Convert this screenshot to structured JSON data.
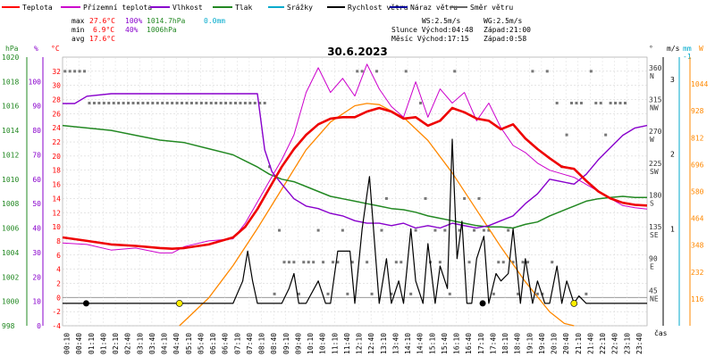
{
  "chart_data": {
    "type": "line",
    "title": "30.6.2023",
    "xlabel": "čas",
    "legend": [
      {
        "name": "Teplota",
        "color": "#ff0000"
      },
      {
        "name": "Přízemní teplota",
        "color": "#cc00cc"
      },
      {
        "name": "Vlhkost",
        "color": "#8800cc"
      },
      {
        "name": "Tlak",
        "color": "#228822"
      },
      {
        "name": "Srážky",
        "color": "#00aacc"
      },
      {
        "name": "Rychlost větru",
        "color": "#000000"
      },
      {
        "name": "Náraz větru",
        "color": "#000099"
      },
      {
        "name": "Směr větru",
        "color": "#666666"
      }
    ],
    "stats": {
      "max_label": "max",
      "max_temp": "27.6°C",
      "max_hum": "100%",
      "max_press": "1014.7hPa",
      "max_rain": "0.0mm",
      "min_label": "min",
      "min_temp": "6.9°C",
      "min_hum": "40%",
      "min_press": "1006hPa",
      "avg_label": "avg",
      "avg_temp": "17.6°C"
    },
    "wind": {
      "ws": "WS:2.5m/s",
      "wg": "WG:2.5m/s"
    },
    "sun": {
      "sunrise": "Slunce Východ:04:48",
      "sunset": "Západ:21:00"
    },
    "moon": {
      "moonrise": "Měsíc  Východ:17:15",
      "moonset": "Západ:0:58"
    },
    "axes": {
      "hpa": {
        "label": "hPa",
        "ticks": [
          998,
          1000,
          1002,
          1004,
          1006,
          1008,
          1010,
          1012,
          1014,
          1016,
          1018,
          1020
        ],
        "range": [
          998,
          1020
        ]
      },
      "pct": {
        "label": "%",
        "ticks": [
          0,
          10,
          20,
          30,
          40,
          50,
          60,
          70,
          80,
          90,
          100
        ],
        "range": [
          0,
          110
        ]
      },
      "deg": {
        "label": "°C",
        "ticks": [
          -4,
          -2,
          0,
          2,
          4,
          6,
          8,
          10,
          12,
          14,
          16,
          18,
          20,
          22,
          24,
          26,
          28,
          30,
          32
        ],
        "range": [
          -4,
          34
        ]
      },
      "dir": {
        "label": "°",
        "ticks": [
          {
            "v": "45",
            "d": "NE"
          },
          {
            "v": "90",
            "d": "E"
          },
          {
            "v": "135",
            "d": "SE"
          },
          {
            "v": "180",
            "d": "S"
          },
          {
            "v": "225",
            "d": "SW"
          },
          {
            "v": "270",
            "d": "W"
          },
          {
            "v": "315",
            "d": "NW"
          },
          {
            "v": "360",
            "d": "N"
          }
        ]
      },
      "ms": {
        "label": "m/s",
        "ticks": [
          1,
          2,
          3
        ],
        "range": [
          -0.3,
          3.3
        ]
      },
      "mm": {
        "label": "mm",
        "ticks": [
          -1
        ]
      },
      "wm2": {
        "label": "W",
        "ticks": [
          116,
          232,
          348,
          464,
          580,
          696,
          812,
          928,
          1044
        ],
        "range": [
          0,
          1160
        ]
      }
    },
    "x_ticks": [
      "00:10",
      "00:40",
      "01:10",
      "01:40",
      "02:10",
      "02:40",
      "03:10",
      "03:40",
      "04:10",
      "04:40",
      "05:10",
      "05:40",
      "06:10",
      "06:40",
      "07:10",
      "07:40",
      "08:10",
      "08:40",
      "09:10",
      "09:40",
      "10:10",
      "10:40",
      "11:10",
      "11:40",
      "12:10",
      "12:40",
      "13:10",
      "13:40",
      "14:10",
      "14:40",
      "15:10",
      "15:40",
      "16:10",
      "16:40",
      "17:10",
      "17:40",
      "18:10",
      "18:40",
      "19:10",
      "19:40",
      "20:10",
      "20:40",
      "21:10",
      "21:40",
      "22:10",
      "22:40",
      "23:10",
      "23:40"
    ],
    "series": [
      {
        "name": "Teplota",
        "unit": "°C",
        "x": [
          0,
          1,
          2,
          3,
          4,
          4.5,
          5,
          6,
          7,
          7.5,
          8,
          8.5,
          9,
          9.5,
          10,
          10.5,
          11,
          11.5,
          12,
          12.5,
          13,
          13.5,
          14,
          14.5,
          15,
          15.5,
          16,
          16.5,
          17,
          17.5,
          18,
          18.5,
          19,
          19.5,
          20,
          20.5,
          21,
          21.5,
          22,
          22.5,
          23,
          23.5,
          24
        ],
        "y": [
          8.5,
          8,
          7.5,
          7.3,
          7,
          6.9,
          7,
          7.5,
          8.5,
          10,
          12.5,
          15.5,
          18.5,
          21,
          23,
          24.5,
          25.3,
          25.5,
          25.5,
          26.3,
          26.8,
          26.3,
          25.3,
          25.5,
          24.3,
          25,
          26.8,
          26.2,
          25.3,
          25,
          23.8,
          24.5,
          22.5,
          21,
          19.7,
          18.5,
          18.2,
          16.5,
          15,
          14,
          13.4,
          13.1,
          13
        ]
      },
      {
        "name": "Přízemní teplota",
        "unit": "°C",
        "x": [
          0,
          1,
          2,
          3,
          4,
          4.5,
          5,
          6,
          7,
          7.5,
          8,
          8.5,
          9,
          9.5,
          10,
          10.5,
          11,
          11.5,
          12,
          12.5,
          13,
          13.5,
          14,
          14.5,
          15,
          15.5,
          16,
          16.5,
          17,
          17.5,
          18,
          18.5,
          19,
          19.5,
          20,
          20.5,
          21,
          21.5,
          22,
          22.5,
          23,
          23.5,
          24
        ],
        "y": [
          7.7,
          7.5,
          6.7,
          7,
          6.3,
          6.3,
          7.2,
          8,
          8.3,
          10.5,
          13.5,
          16.5,
          19.5,
          23,
          29,
          32.5,
          29,
          31,
          28.5,
          33,
          29.5,
          27,
          25.5,
          30.5,
          25.5,
          29.5,
          27.5,
          29,
          25,
          27.5,
          24,
          21.5,
          20.5,
          19,
          18,
          17.5,
          17,
          16,
          15,
          14,
          13,
          12.7,
          12.5
        ]
      },
      {
        "name": "Vlhkost",
        "unit": "%",
        "x": [
          0,
          0.5,
          1,
          2,
          3,
          4,
          5,
          6,
          7,
          7.5,
          8,
          8.3,
          8.6,
          9,
          9.5,
          10,
          10.5,
          11,
          11.5,
          12,
          12.5,
          13,
          13.5,
          14,
          14.5,
          15,
          15.5,
          16,
          16.5,
          17,
          17.5,
          18,
          18.5,
          19,
          19.5,
          20,
          20.5,
          21,
          21.5,
          22,
          22.5,
          23,
          23.5,
          24
        ],
        "y": [
          91,
          91,
          94,
          95,
          95,
          95,
          95,
          95,
          95,
          95,
          95,
          72,
          63,
          58,
          52,
          49,
          48,
          46,
          45,
          43,
          42,
          42,
          41,
          42,
          40,
          41,
          40,
          42,
          41,
          40,
          41,
          43,
          45,
          50,
          54,
          60,
          59,
          58,
          62,
          68,
          73,
          78,
          81,
          82
        ]
      },
      {
        "name": "Tlak",
        "unit": "hPa",
        "x": [
          0,
          1,
          2,
          3,
          4,
          5,
          6,
          7,
          7.5,
          8,
          8.5,
          9,
          9.5,
          10,
          10.5,
          11,
          11.5,
          12,
          12.5,
          13,
          13.5,
          14,
          14.5,
          15,
          15.5,
          16,
          16.5,
          17,
          17.5,
          18,
          18.5,
          19,
          19.5,
          20,
          20.5,
          21,
          21.5,
          22,
          22.5,
          23,
          23.5,
          24
        ],
        "y": [
          1014.4,
          1014.2,
          1014,
          1013.6,
          1013.2,
          1013,
          1012.5,
          1012,
          1011.5,
          1011,
          1010.4,
          1010,
          1009.8,
          1009.4,
          1009,
          1008.6,
          1008.4,
          1008.2,
          1008,
          1007.8,
          1007.6,
          1007.5,
          1007.3,
          1007,
          1006.8,
          1006.6,
          1006.4,
          1006.2,
          1006.1,
          1006.1,
          1006,
          1006.3,
          1006.5,
          1007,
          1007.4,
          1007.8,
          1008.2,
          1008.4,
          1008.5,
          1008.6,
          1008.5,
          1008.5
        ]
      },
      {
        "name": "Rychlost větru",
        "unit": "m/s",
        "x": [
          0,
          1,
          2,
          3,
          4,
          5,
          7,
          7.4,
          7.6,
          7.8,
          8,
          9,
          9.3,
          9.5,
          9.7,
          10,
          10.5,
          10.8,
          11,
          11.3,
          11.5,
          11.8,
          12,
          12.3,
          12.6,
          13,
          13.3,
          13.5,
          13.8,
          14,
          14.3,
          14.5,
          14.8,
          15,
          15.3,
          15.5,
          15.8,
          16,
          16.2,
          16.4,
          16.6,
          16.8,
          17,
          17.3,
          17.5,
          17.8,
          18,
          18.3,
          18.5,
          18.8,
          19,
          19.3,
          19.5,
          19.8,
          20,
          20.3,
          20.5,
          20.7,
          21,
          21.2,
          21.5,
          22,
          24
        ],
        "y": [
          0,
          0,
          0,
          0,
          0,
          0,
          0,
          0.3,
          0.7,
          0.3,
          0,
          0,
          0.2,
          0.4,
          0,
          0,
          0.3,
          0,
          0,
          0.7,
          0.7,
          0.7,
          0,
          1,
          1.7,
          0,
          0.6,
          0,
          0.3,
          0,
          1,
          0.3,
          0,
          0.8,
          0,
          0.5,
          0.2,
          2.2,
          0.6,
          1.1,
          0,
          0,
          0.6,
          0.9,
          0,
          0.4,
          0.3,
          0.4,
          1,
          0,
          0.6,
          0,
          0.3,
          0,
          0,
          0.5,
          0,
          0.3,
          0,
          0.1,
          0,
          0,
          0
        ]
      },
      {
        "name": "Slunce",
        "unit": "W/m²",
        "x": [
          4.8,
          6,
          7,
          8,
          9,
          10,
          11,
          12,
          12.5,
          13,
          14,
          15,
          16,
          17,
          18,
          19,
          20,
          20.6,
          21
        ],
        "y": [
          0,
          120,
          260,
          420,
          590,
          760,
          880,
          950,
          960,
          955,
          900,
          800,
          660,
          500,
          340,
          190,
          60,
          10,
          0
        ]
      }
    ],
    "wind_direction_points": [
      [
        0.1,
        360
      ],
      [
        0.3,
        360
      ],
      [
        0.5,
        360
      ],
      [
        0.7,
        360
      ],
      [
        0.9,
        360
      ],
      [
        1.1,
        315
      ],
      [
        1.3,
        315
      ],
      [
        1.5,
        315
      ],
      [
        1.7,
        315
      ],
      [
        1.9,
        315
      ],
      [
        2.1,
        315
      ],
      [
        2.3,
        315
      ],
      [
        2.5,
        315
      ],
      [
        2.7,
        315
      ],
      [
        2.9,
        315
      ],
      [
        3.1,
        315
      ],
      [
        3.3,
        315
      ],
      [
        3.5,
        315
      ],
      [
        3.7,
        315
      ],
      [
        3.9,
        315
      ],
      [
        4.1,
        315
      ],
      [
        4.3,
        315
      ],
      [
        4.5,
        315
      ],
      [
        4.7,
        315
      ],
      [
        4.9,
        315
      ],
      [
        5.1,
        315
      ],
      [
        5.3,
        315
      ],
      [
        5.5,
        315
      ],
      [
        5.7,
        315
      ],
      [
        5.9,
        315
      ],
      [
        6.1,
        315
      ],
      [
        6.3,
        315
      ],
      [
        6.5,
        315
      ],
      [
        6.7,
        315
      ],
      [
        6.9,
        315
      ],
      [
        7.1,
        315
      ],
      [
        7.3,
        315
      ],
      [
        7.5,
        315
      ],
      [
        7.7,
        315
      ],
      [
        7.9,
        315
      ],
      [
        8.1,
        315
      ],
      [
        8.3,
        315
      ],
      [
        8.5,
        225
      ],
      [
        8.7,
        45
      ],
      [
        8.9,
        135
      ],
      [
        9.1,
        90
      ],
      [
        9.3,
        90
      ],
      [
        9.5,
        90
      ],
      [
        9.7,
        45
      ],
      [
        9.9,
        90
      ],
      [
        10.1,
        90
      ],
      [
        10.3,
        90
      ],
      [
        10.5,
        135
      ],
      [
        10.7,
        90
      ],
      [
        10.9,
        45
      ],
      [
        11.1,
        90
      ],
      [
        11.3,
        90
      ],
      [
        11.5,
        135
      ],
      [
        11.7,
        45
      ],
      [
        11.9,
        90
      ],
      [
        12.1,
        360
      ],
      [
        12.3,
        360
      ],
      [
        12.5,
        90
      ],
      [
        12.7,
        45
      ],
      [
        12.9,
        360
      ],
      [
        13.1,
        135
      ],
      [
        13.3,
        180
      ],
      [
        13.5,
        45
      ],
      [
        13.7,
        90
      ],
      [
        13.9,
        90
      ],
      [
        14.1,
        360
      ],
      [
        14.3,
        45
      ],
      [
        14.5,
        135
      ],
      [
        14.7,
        315
      ],
      [
        14.9,
        180
      ],
      [
        15.1,
        90
      ],
      [
        15.3,
        135
      ],
      [
        15.5,
        90
      ],
      [
        15.7,
        135
      ],
      [
        15.9,
        45
      ],
      [
        16.1,
        360
      ],
      [
        16.3,
        135
      ],
      [
        16.5,
        180
      ],
      [
        16.7,
        90
      ],
      [
        16.9,
        135
      ],
      [
        17.1,
        180
      ],
      [
        17.3,
        135
      ],
      [
        17.5,
        135
      ],
      [
        17.7,
        45
      ],
      [
        17.9,
        90
      ],
      [
        18.1,
        90
      ],
      [
        18.3,
        135
      ],
      [
        18.5,
        90
      ],
      [
        18.7,
        45
      ],
      [
        18.9,
        90
      ],
      [
        19.1,
        90
      ],
      [
        19.3,
        360
      ],
      [
        19.5,
        45
      ],
      [
        19.7,
        45
      ],
      [
        19.9,
        360
      ],
      [
        20.1,
        90
      ],
      [
        20.3,
        315
      ],
      [
        20.5,
        225
      ],
      [
        20.7,
        270
      ],
      [
        20.9,
        315
      ],
      [
        21.1,
        315
      ],
      [
        21.3,
        315
      ],
      [
        21.5,
        45
      ],
      [
        21.7,
        360
      ],
      [
        21.9,
        315
      ],
      [
        22.1,
        315
      ],
      [
        22.3,
        270
      ],
      [
        22.5,
        315
      ],
      [
        22.7,
        315
      ],
      [
        22.9,
        315
      ],
      [
        23.1,
        315
      ]
    ]
  }
}
